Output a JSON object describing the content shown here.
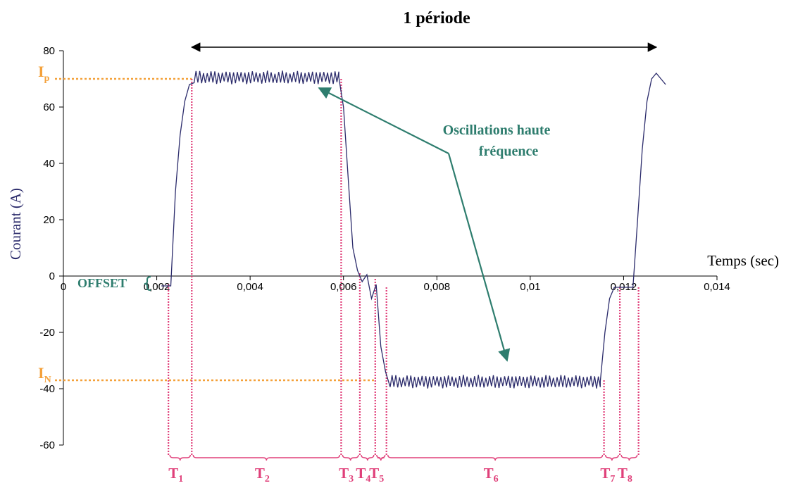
{
  "chart_data": {
    "type": "line",
    "title": "1 période",
    "xlabel": "Temps (sec)",
    "ylabel": "Courant (A)",
    "xlim": [
      0,
      0.014
    ],
    "ylim": [
      -60,
      80
    ],
    "x_ticks": [
      0,
      0.002,
      0.004,
      0.006,
      0.008,
      0.01,
      0.012,
      0.014
    ],
    "x_tick_labels": [
      "0",
      "0,002",
      "0,004",
      "0,006",
      "0,008",
      "0,01",
      "0,012",
      "0,014"
    ],
    "y_ticks": [
      -60,
      -40,
      -20,
      0,
      20,
      40,
      60,
      80
    ],
    "y_tick_labels": [
      "-60",
      "-40",
      "-20",
      "0",
      "20",
      "40",
      "60",
      "80"
    ],
    "grid": false,
    "series": [
      {
        "color": "#2b2b6b",
        "description_points": [
          [
            0.0021,
            -3.5
          ],
          [
            0.0023,
            -3.5
          ],
          [
            0.0024,
            30
          ],
          [
            0.0025,
            50
          ],
          [
            0.0026,
            62
          ],
          [
            0.0027,
            68
          ],
          [
            0.0028,
            70.5
          ],
          [
            0.0059,
            70.5
          ],
          [
            0.006,
            60
          ],
          [
            0.0061,
            35
          ],
          [
            0.0062,
            10
          ],
          [
            0.0063,
            2
          ],
          [
            0.0064,
            -2
          ],
          [
            0.0065,
            0.5
          ],
          [
            0.0066,
            -8
          ],
          [
            0.0067,
            -3
          ],
          [
            0.0068,
            -25
          ],
          [
            0.0069,
            -34
          ],
          [
            0.007,
            -37.5
          ],
          [
            0.0115,
            -37.5
          ],
          [
            0.0116,
            -20
          ],
          [
            0.0117,
            -8
          ],
          [
            0.0118,
            -4
          ],
          [
            0.0122,
            -4
          ],
          [
            0.0123,
            20
          ],
          [
            0.0124,
            45
          ],
          [
            0.0125,
            62
          ],
          [
            0.0126,
            70
          ],
          [
            0.0127,
            72
          ],
          [
            0.0129,
            68
          ]
        ],
        "oscillation_amplitude": 2.5
      }
    ],
    "levels": [
      {
        "label": "I",
        "subscript": "p",
        "value": 70,
        "color": "#f4a13a"
      },
      {
        "label": "I",
        "subscript": "N",
        "value": -37,
        "color": "#f4a13a"
      }
    ],
    "intervals": [
      {
        "label": "T",
        "subscript": "1",
        "x0": 0.00225,
        "x1": 0.00275
      },
      {
        "label": "T",
        "subscript": "2",
        "x0": 0.00275,
        "x1": 0.00595
      },
      {
        "label": "T",
        "subscript": "3",
        "x0": 0.00595,
        "x1": 0.00635
      },
      {
        "label": "T",
        "subscript": "4",
        "x0": 0.00635,
        "x1": 0.00668
      },
      {
        "label": "T",
        "subscript": "5",
        "x0": 0.00668,
        "x1": 0.00692
      },
      {
        "label": "T",
        "subscript": "6",
        "x0": 0.00692,
        "x1": 0.01158
      },
      {
        "label": "T",
        "subscript": "7",
        "x0": 0.01158,
        "x1": 0.01192
      },
      {
        "label": "T",
        "subscript": "8",
        "x0": 0.01192,
        "x1": 0.01232
      }
    ],
    "period": {
      "x0": 0.00275,
      "x1": 0.0127
    },
    "annotations": {
      "oscillations": {
        "line1": "Oscillations haute",
        "line2": "fréquence"
      },
      "offset": "OFFSET"
    },
    "colors": {
      "signal": "#2b2b6b",
      "interval_marker": "#e0407a",
      "level_marker": "#f4a13a",
      "annotation": "#2e7d6e",
      "axis": "#000000"
    }
  }
}
